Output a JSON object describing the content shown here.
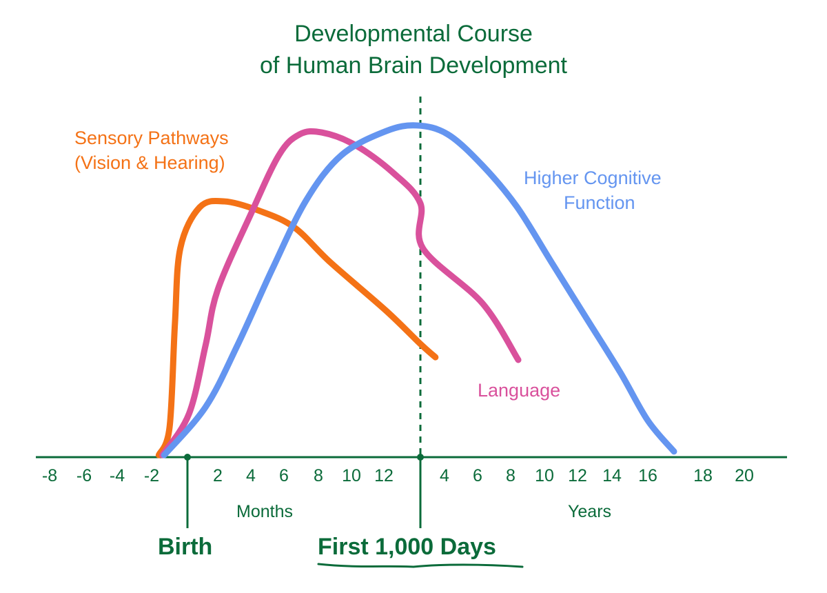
{
  "chart_data": {
    "type": "line",
    "title": "Developmental Course\nof Human Brain Development",
    "title_lines": [
      "Developmental Course",
      "of Human Brain Development"
    ],
    "x_unit": "months of age (prenatal negative); right segment labeled in years",
    "x_tick_labels": {
      "months": [
        "-8",
        "-6",
        "-4",
        "-2",
        "2",
        "4",
        "6",
        "8",
        "10",
        "12"
      ],
      "years": [
        "4",
        "6",
        "8",
        "10",
        "12",
        "14",
        "16",
        "18",
        "20"
      ]
    },
    "x_segment_labels": [
      "Months",
      "Years"
    ],
    "markers": [
      {
        "label": "Birth",
        "x": 0
      },
      {
        "label": "First 1,000 Days",
        "x": 24,
        "dashed": true
      }
    ],
    "y_axis": "relative, unlabeled (0-100)",
    "grid": false,
    "series": [
      {
        "name": "Sensory Pathways (Vision & Hearing)",
        "label_lines": [
          "Sensory Pathways",
          "(Vision & Hearing)"
        ],
        "color": "#F47216",
        "points": [
          [
            -1.6,
            0.6
          ],
          [
            -1.0,
            8.9
          ],
          [
            -0.7,
            40
          ],
          [
            -0.4,
            62.7
          ],
          [
            0.8,
            75
          ],
          [
            2.4,
            76.8
          ],
          [
            4.5,
            74
          ],
          [
            6.6,
            69
          ],
          [
            8.7,
            58.6
          ],
          [
            12.7,
            44
          ],
          [
            24,
            34
          ],
          [
            39,
            30
          ]
        ]
      },
      {
        "name": "Language",
        "label_lines": [
          "Language"
        ],
        "color": "#D9519C",
        "points": [
          [
            -1.4,
            0.6
          ],
          [
            0.1,
            13
          ],
          [
            1.2,
            33.7
          ],
          [
            2.0,
            50.3
          ],
          [
            4.0,
            73
          ],
          [
            5.7,
            90.7
          ],
          [
            6.9,
            96.9
          ],
          [
            8.2,
            97.5
          ],
          [
            10.2,
            93.8
          ],
          [
            14.9,
            85.5
          ],
          [
            24,
            76.2
          ],
          [
            26.5,
            62.7
          ],
          [
            75.5,
            46.2
          ],
          [
            101.4,
            29.2
          ]
        ]
      },
      {
        "name": "Higher Cognitive Function",
        "label_lines": [
          "Higher Cognitive",
          "Function"
        ],
        "color": "#6495F0",
        "points": [
          [
            -1.3,
            0.6
          ],
          [
            1.2,
            15.1
          ],
          [
            3.2,
            33.7
          ],
          [
            5.3,
            56.5
          ],
          [
            7.3,
            77.2
          ],
          [
            9.4,
            90.7
          ],
          [
            12.7,
            97.9
          ],
          [
            22.9,
            99.6
          ],
          [
            50.5,
            96.9
          ],
          [
            75.5,
            87.6
          ],
          [
            100.4,
            75.2
          ],
          [
            125,
            58.6
          ],
          [
            149.8,
            42
          ],
          [
            173.5,
            25.5
          ],
          [
            192,
            11
          ],
          [
            203.4,
            1.7
          ]
        ]
      }
    ],
    "axis_color": "#0B6B3A"
  }
}
